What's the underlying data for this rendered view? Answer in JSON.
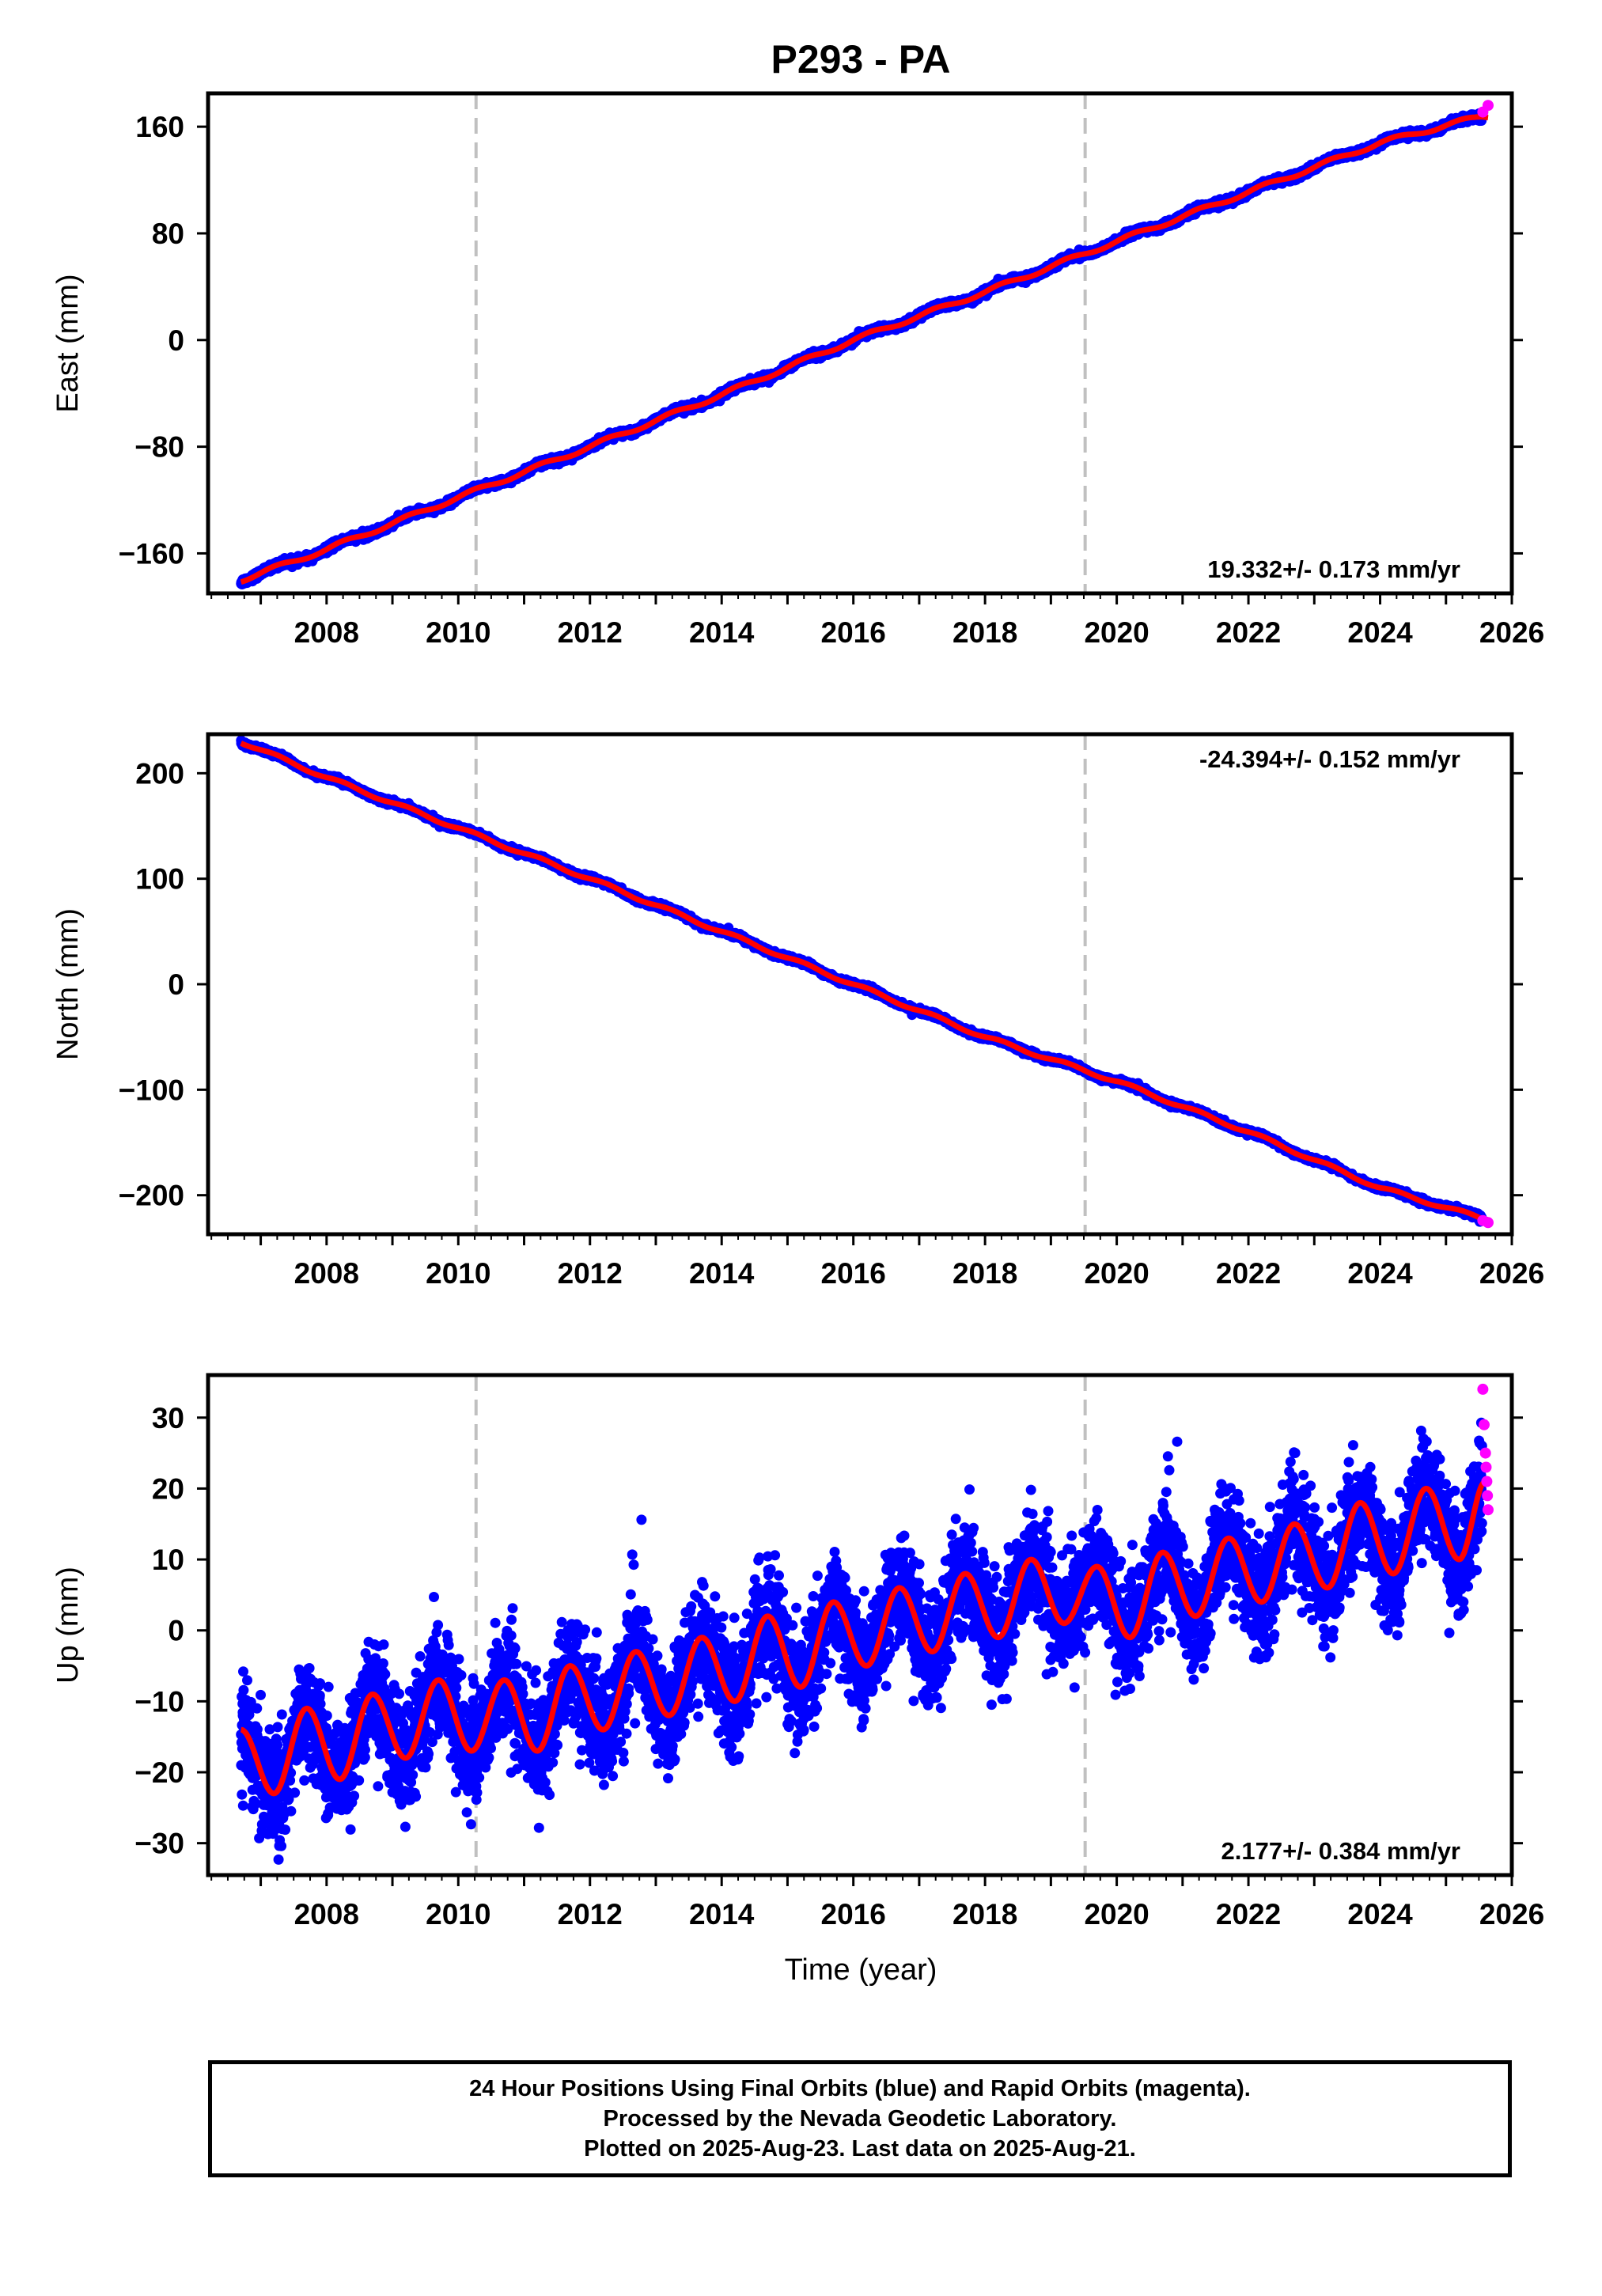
{
  "title": "P293 - PA",
  "xlabel": "Time (year)",
  "footer": {
    "line1": "24 Hour Positions Using Final Orbits (blue) and Rapid Orbits (magenta).",
    "line2": "Processed by the Nevada Geodetic Laboratory.",
    "line3": "Plotted on 2025-Aug-23. Last data on 2025-Aug-21."
  },
  "colors": {
    "final_orbits": "#0000ff",
    "rapid_orbits": "#ff00ff",
    "model_fit": "#ff0000",
    "event_lines": "#c0c0c0"
  },
  "chart_data": [
    {
      "type": "scatter",
      "component": "east",
      "ylabel": "East (mm)",
      "ylim": [
        -190,
        185
      ],
      "xlim": [
        2006.2,
        2026
      ],
      "yticks": [
        -160,
        -80,
        0,
        80,
        160
      ],
      "xticks": [
        2008,
        2010,
        2012,
        2014,
        2016,
        2018,
        2020,
        2022,
        2024,
        2026
      ],
      "rate_label": "19.332+/- 0.173 mm/yr",
      "rate_label_position": "bottom-right",
      "event_lines": [
        2010.27,
        2019.52
      ],
      "data_start": 2006.7,
      "data_end": 2025.64,
      "series": [
        {
          "name": "Final Orbits",
          "color": "#0000ff",
          "x": [
            2006.7,
            2008,
            2010,
            2012,
            2014,
            2016,
            2018,
            2020,
            2022,
            2024,
            2025.55
          ],
          "y": [
            -180,
            -157,
            -118,
            -80,
            -41,
            0,
            36,
            74,
            111,
            148,
            168
          ]
        },
        {
          "name": "Rapid Orbits",
          "color": "#ff00ff",
          "x": [
            2025.56,
            2025.64
          ],
          "y": [
            171,
            176
          ]
        }
      ]
    },
    {
      "type": "scatter",
      "component": "north",
      "ylabel": "North (mm)",
      "ylim": [
        -237,
        237
      ],
      "xlim": [
        2006.2,
        2026
      ],
      "yticks": [
        -200,
        -100,
        0,
        100,
        200
      ],
      "xticks": [
        2008,
        2010,
        2012,
        2014,
        2016,
        2018,
        2020,
        2022,
        2024,
        2026
      ],
      "rate_label": "-24.394+/- 0.152 mm/yr",
      "rate_label_position": "top-right",
      "event_lines": [
        2010.27,
        2019.52
      ],
      "data_start": 2006.7,
      "data_end": 2025.64,
      "series": [
        {
          "name": "Final Orbits",
          "color": "#0000ff",
          "x": [
            2006.7,
            2008,
            2010,
            2012,
            2014,
            2016,
            2018,
            2020,
            2022,
            2024,
            2025.55
          ],
          "y": [
            230,
            196,
            148,
            100,
            50,
            0,
            -50,
            -92,
            -140,
            -193,
            -222
          ]
        },
        {
          "name": "Rapid Orbits",
          "color": "#ff00ff",
          "x": [
            2025.56,
            2025.64
          ],
          "y": [
            -224,
            -226
          ]
        }
      ]
    },
    {
      "type": "scatter",
      "component": "up",
      "ylabel": "Up (mm)",
      "ylim": [
        -34.5,
        36
      ],
      "xlim": [
        2006.2,
        2026
      ],
      "yticks": [
        -30,
        -20,
        -10,
        0,
        10,
        20,
        30
      ],
      "xticks": [
        2008,
        2010,
        2012,
        2014,
        2016,
        2018,
        2020,
        2022,
        2024,
        2026
      ],
      "rate_label": "2.177+/- 0.384 mm/yr",
      "rate_label_position": "bottom-right",
      "event_lines": [
        2010.27,
        2019.52
      ],
      "data_start": 2006.7,
      "data_end": 2025.64,
      "seasonal_peaks": [
        [
          2006.7,
          -14
        ],
        [
          2007.2,
          -23
        ],
        [
          2007.7,
          -11
        ],
        [
          2008.2,
          -21
        ],
        [
          2008.7,
          -9
        ],
        [
          2009.2,
          -18
        ],
        [
          2009.7,
          -7
        ],
        [
          2010.2,
          -17
        ],
        [
          2010.7,
          -7
        ],
        [
          2011.2,
          -17
        ],
        [
          2011.7,
          -5
        ],
        [
          2012.2,
          -14
        ],
        [
          2012.7,
          -3
        ],
        [
          2013.2,
          -12
        ],
        [
          2013.7,
          -1
        ],
        [
          2014.2,
          -10
        ],
        [
          2014.7,
          2
        ],
        [
          2015.2,
          -8
        ],
        [
          2015.7,
          4
        ],
        [
          2016.2,
          -5
        ],
        [
          2016.7,
          6
        ],
        [
          2017.2,
          -3
        ],
        [
          2017.7,
          8
        ],
        [
          2018.2,
          -1
        ],
        [
          2018.7,
          10
        ],
        [
          2019.2,
          1
        ],
        [
          2019.7,
          9
        ],
        [
          2020.2,
          -1
        ],
        [
          2020.7,
          11
        ],
        [
          2021.2,
          2
        ],
        [
          2021.7,
          13
        ],
        [
          2022.2,
          4
        ],
        [
          2022.7,
          15
        ],
        [
          2023.2,
          6
        ],
        [
          2023.7,
          18
        ],
        [
          2024.2,
          8
        ],
        [
          2024.7,
          20
        ],
        [
          2025.2,
          10
        ],
        [
          2025.6,
          21
        ]
      ],
      "rapid_points": {
        "x": [
          2025.56,
          2025.58,
          2025.6,
          2025.61,
          2025.62,
          2025.63,
          2025.64
        ],
        "y": [
          34,
          29,
          25,
          23,
          21,
          19,
          17
        ]
      }
    }
  ]
}
